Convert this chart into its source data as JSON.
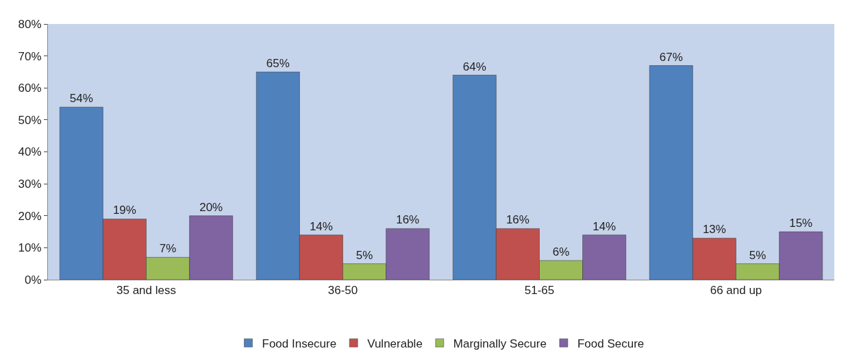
{
  "chart_data": {
    "type": "bar",
    "categories": [
      "35 and less",
      "36-50",
      "51-65",
      "66 and up"
    ],
    "series": [
      {
        "name": "Food Insecure",
        "color": "#4f81bd",
        "values": [
          54,
          65,
          64,
          67
        ],
        "value_labels": [
          "54%",
          "65%",
          "64%",
          "67%"
        ]
      },
      {
        "name": "Vulnerable",
        "color": "#c0504d",
        "values": [
          19,
          14,
          16,
          13
        ],
        "value_labels": [
          "19%",
          "14%",
          "16%",
          "13%"
        ]
      },
      {
        "name": "Marginally Secure",
        "color": "#9bbb59",
        "values": [
          7,
          5,
          6,
          5
        ],
        "value_labels": [
          "7%",
          "5%",
          "6%",
          "5%"
        ]
      },
      {
        "name": "Food Secure",
        "color": "#8064a2",
        "values": [
          20,
          16,
          14,
          15
        ],
        "value_labels": [
          "20%",
          "16%",
          "14%",
          "15%"
        ]
      }
    ],
    "ylim": [
      0,
      80
    ],
    "yticks": [
      {
        "value": 0,
        "label": "0%"
      },
      {
        "value": 10,
        "label": "10%"
      },
      {
        "value": 20,
        "label": "20%"
      },
      {
        "value": 30,
        "label": "30%"
      },
      {
        "value": 40,
        "label": "40%"
      },
      {
        "value": 50,
        "label": "50%"
      },
      {
        "value": 60,
        "label": "60%"
      },
      {
        "value": 70,
        "label": "70%"
      },
      {
        "value": 80,
        "label": "80%"
      }
    ],
    "grid": false,
    "legend": "bottom"
  }
}
